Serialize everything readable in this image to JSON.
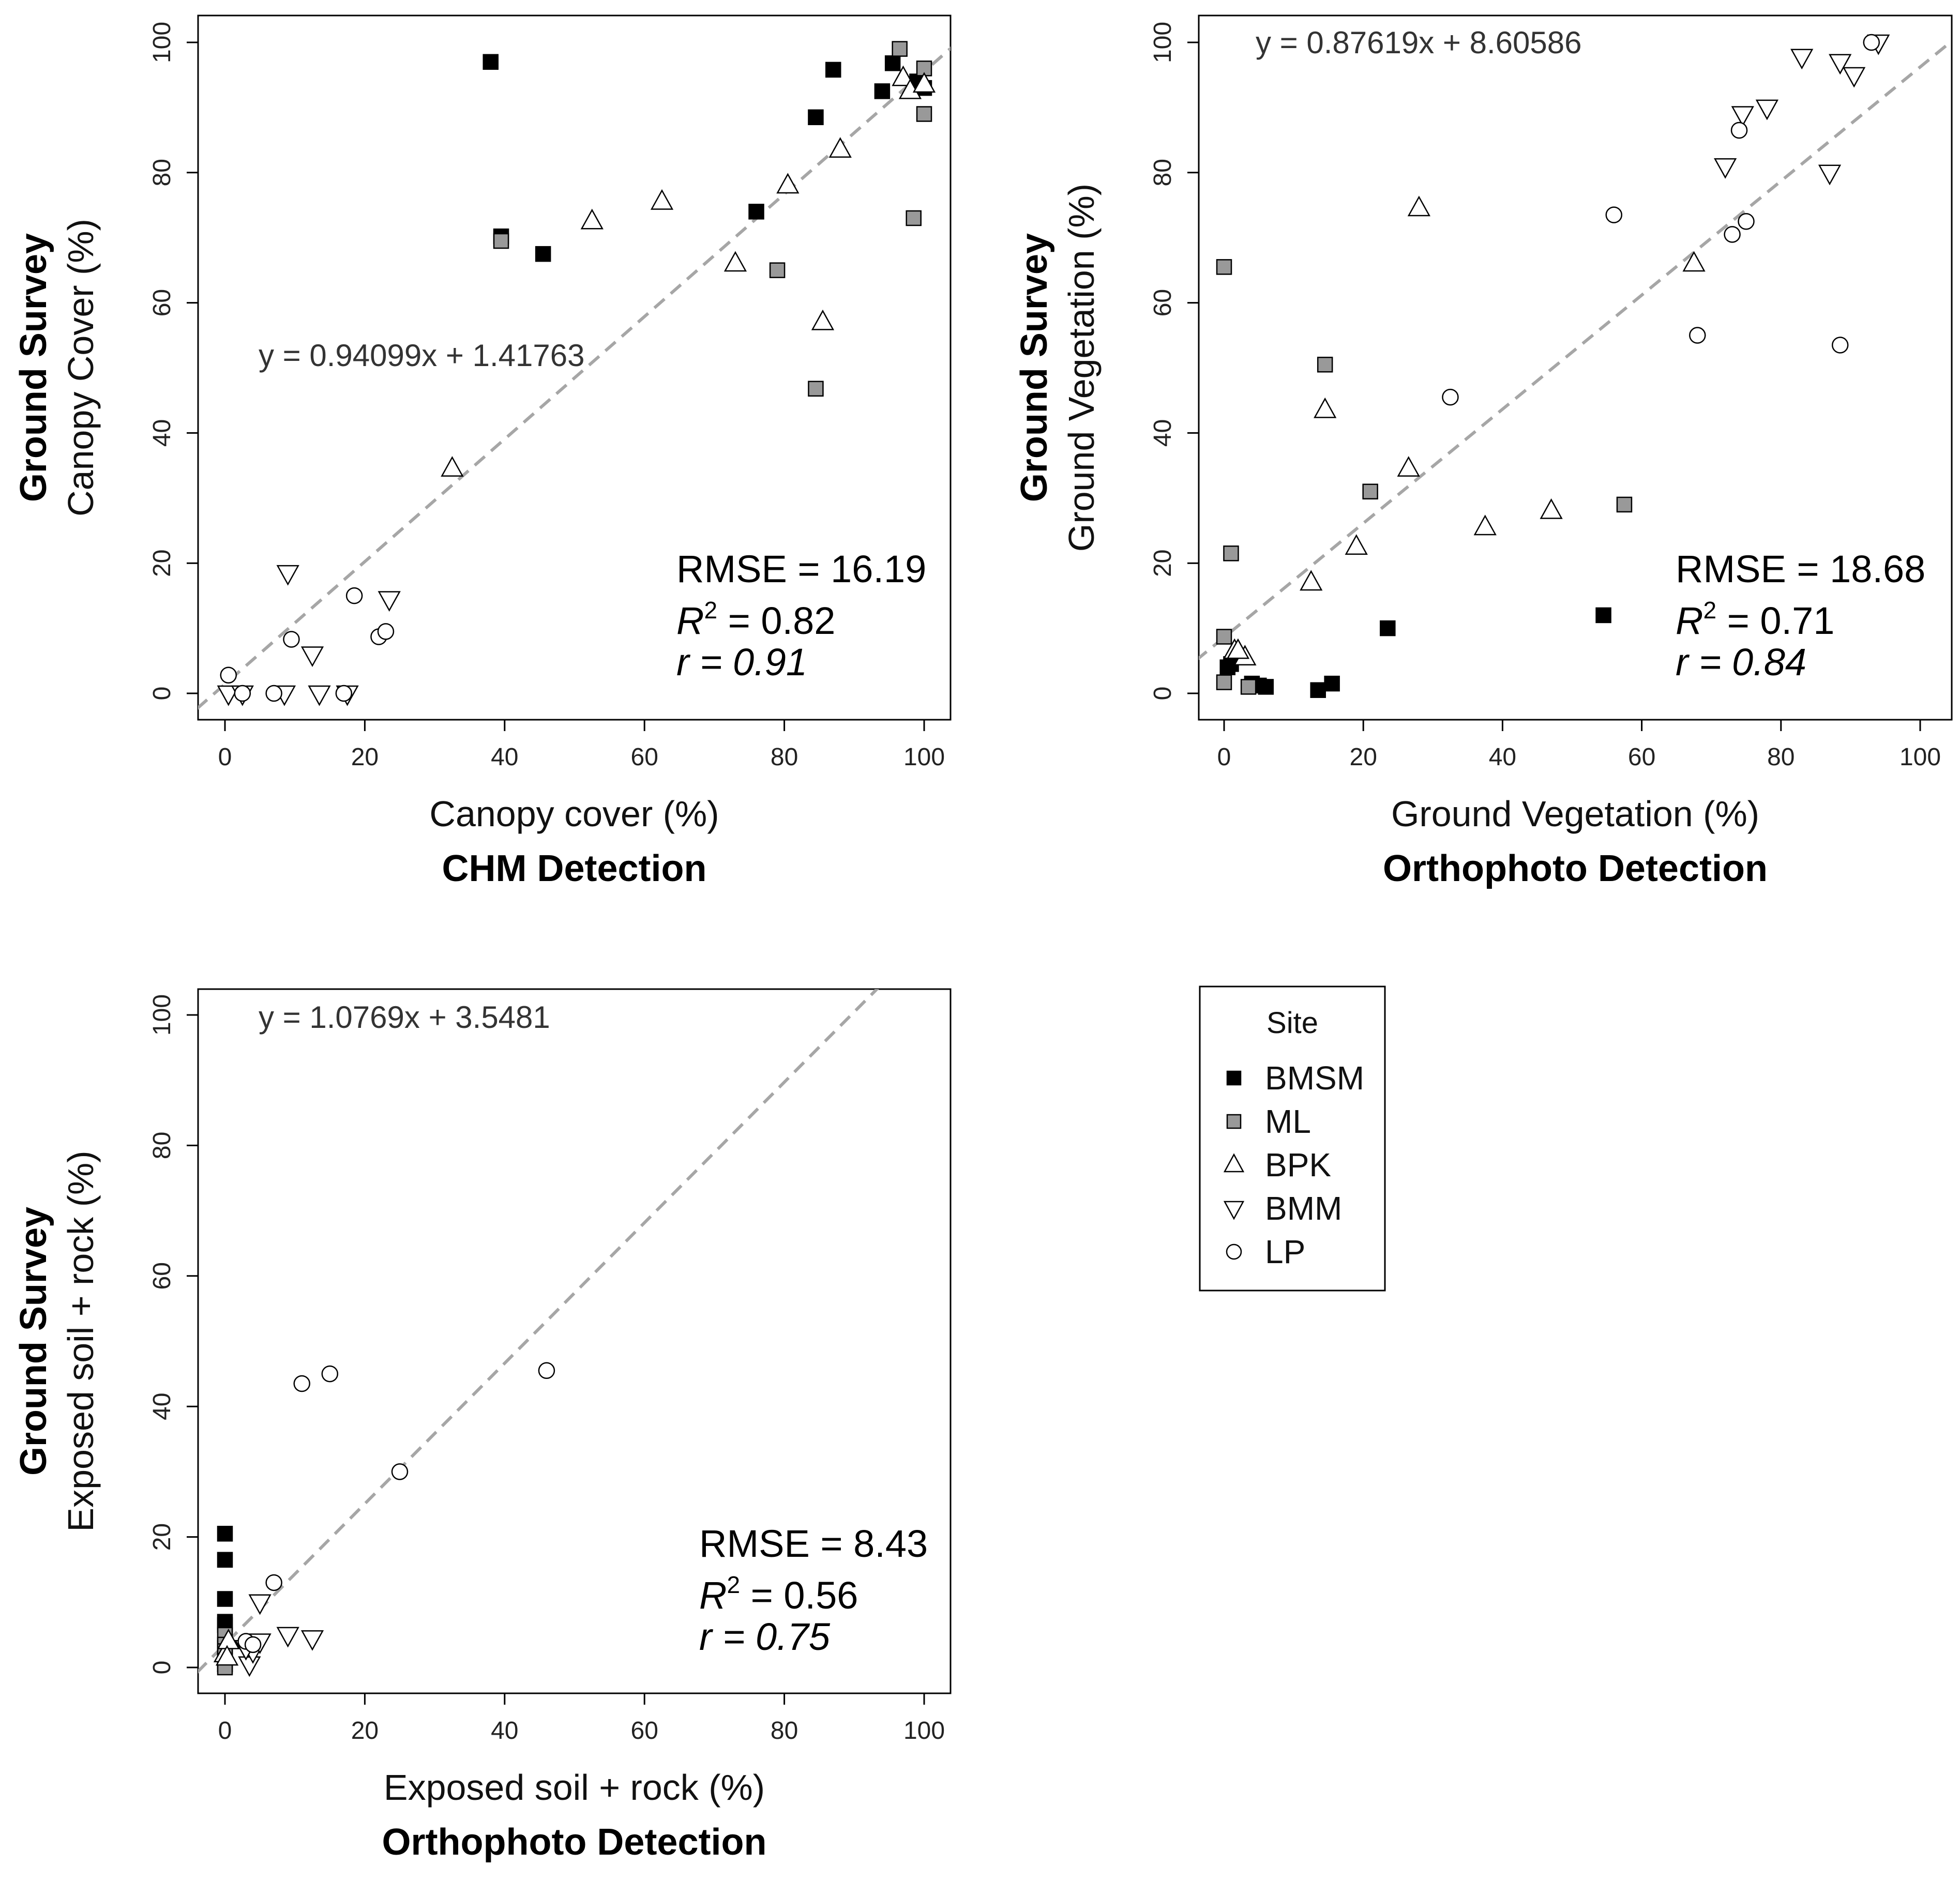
{
  "colors": {
    "BMSM": "#000000",
    "ML": "#999999",
    "BPK": "#ffffff",
    "BMM": "#ffffff",
    "LP": "#ffffff",
    "fit_line": "#a6a6a6",
    "marker_stroke": "#000000"
  },
  "legend": {
    "title": "Site",
    "items": [
      {
        "label": "BMSM",
        "shape": "square-icon",
        "fill": "#000000"
      },
      {
        "label": "ML",
        "shape": "square-icon",
        "fill": "#999999"
      },
      {
        "label": "BPK",
        "shape": "triangle-up-icon",
        "fill": "#ffffff"
      },
      {
        "label": "BMM",
        "shape": "triangle-down-icon",
        "fill": "#ffffff"
      },
      {
        "label": "LP",
        "shape": "circle-icon",
        "fill": "#ffffff"
      }
    ]
  },
  "chart_data": [
    {
      "type": "scatter",
      "xlabel": "Canopy cover (%)",
      "xlabel_bold": "CHM Detection",
      "ylabel": "Canopy Cover (%)",
      "ylabel_bold": "Ground Survey",
      "xlim": [
        -4,
        104
      ],
      "ylim": [
        -3.5,
        104
      ],
      "xticks": [
        0,
        20,
        40,
        60,
        80,
        100
      ],
      "yticks": [
        0,
        20,
        40,
        60,
        80,
        100
      ],
      "grid": false,
      "equation": "y = 0.94099x + 1.41763",
      "fit": {
        "slope": 0.94099,
        "intercept": 1.41763
      },
      "stats": {
        "rmse": "RMSE = 16.19",
        "r2_prefix": "R",
        "r2_sup": "2",
        "r2_value": " = 0.82",
        "r": "r = 0.91"
      },
      "series": [
        {
          "name": "BMSM",
          "points": [
            [
              38,
              97
            ],
            [
              39.5,
              70.2
            ],
            [
              45.5,
              67.5
            ],
            [
              76,
              74
            ],
            [
              84.5,
              88.5
            ],
            [
              87,
              95.8
            ],
            [
              94,
              92.5
            ],
            [
              95.5,
              96.8
            ],
            [
              99,
              94
            ],
            [
              100,
              93
            ]
          ]
        },
        {
          "name": "ML",
          "points": [
            [
              39.5,
              69.5
            ],
            [
              79,
              65
            ],
            [
              84.5,
              46.8
            ],
            [
              96.5,
              99
            ],
            [
              98.5,
              73
            ],
            [
              100,
              96
            ],
            [
              100,
              89
            ]
          ]
        },
        {
          "name": "BPK",
          "points": [
            [
              32.5,
              34.5
            ],
            [
              52.5,
              72.5
            ],
            [
              62.5,
              75.5
            ],
            [
              73,
              66
            ],
            [
              80.5,
              78
            ],
            [
              85.5,
              57
            ],
            [
              88,
              83.5
            ],
            [
              97,
              94.5
            ],
            [
              98,
              92.5
            ],
            [
              100,
              93.5
            ]
          ]
        },
        {
          "name": "BMM",
          "points": [
            [
              0.5,
              0
            ],
            [
              2.5,
              0
            ],
            [
              8.5,
              0
            ],
            [
              9,
              18.5
            ],
            [
              12.5,
              6
            ],
            [
              13.5,
              0
            ],
            [
              17.5,
              0
            ],
            [
              23.5,
              14.5
            ]
          ]
        },
        {
          "name": "LP",
          "points": [
            [
              0.5,
              2.8
            ],
            [
              2.5,
              0
            ],
            [
              7,
              0
            ],
            [
              9.5,
              8.3
            ],
            [
              17,
              0
            ],
            [
              18.5,
              15
            ],
            [
              22,
              8.7
            ],
            [
              23,
              9.5
            ]
          ]
        }
      ]
    },
    {
      "type": "scatter",
      "xlabel": "Ground Vegetation (%)",
      "xlabel_bold": "Orthophoto Detection",
      "ylabel": "Ground Vegetation (%)",
      "ylabel_bold": "Ground Survey",
      "xlim": [
        -4,
        104
      ],
      "ylim": [
        -3.5,
        104
      ],
      "xticks": [
        0,
        20,
        40,
        60,
        80,
        100
      ],
      "yticks": [
        0,
        20,
        40,
        60,
        80,
        100
      ],
      "grid": false,
      "equation": "y = 0.87619x + 8.60586",
      "fit": {
        "slope": 0.87619,
        "intercept": 8.60586
      },
      "stats": {
        "rmse": "RMSE = 18.68",
        "r2_prefix": "R",
        "r2_sup": "2",
        "r2_value": " = 0.71",
        "r": "r = 0.84"
      },
      "series": [
        {
          "name": "BMSM",
          "points": [
            [
              0.5,
              4
            ],
            [
              1,
              4.5
            ],
            [
              4,
              1.5
            ],
            [
              5,
              1.2
            ],
            [
              6,
              1
            ],
            [
              13.5,
              0.5
            ],
            [
              15.5,
              1.5
            ],
            [
              23.5,
              10
            ],
            [
              54.5,
              12
            ]
          ]
        },
        {
          "name": "ML",
          "points": [
            [
              0,
              65.5
            ],
            [
              0,
              8.7
            ],
            [
              0,
              1.7
            ],
            [
              1,
              21.5
            ],
            [
              3.5,
              1
            ],
            [
              14.5,
              50.5
            ],
            [
              21,
              31
            ],
            [
              57.5,
              29
            ]
          ]
        },
        {
          "name": "BPK",
          "points": [
            [
              1.5,
              6.5
            ],
            [
              3,
              5.5
            ],
            [
              2,
              6.5
            ],
            [
              12.5,
              17
            ],
            [
              14.5,
              43.5
            ],
            [
              19,
              22.5
            ],
            [
              26.5,
              34.5
            ],
            [
              28,
              74.5
            ],
            [
              37.5,
              25.5
            ],
            [
              47,
              28
            ],
            [
              67.5,
              66
            ]
          ]
        },
        {
          "name": "BMM",
          "points": [
            [
              72,
              81
            ],
            [
              74.5,
              89
            ],
            [
              78,
              90
            ],
            [
              83,
              97.8
            ],
            [
              87,
              80
            ],
            [
              88.5,
              97
            ],
            [
              90.5,
              95
            ],
            [
              94,
              100
            ]
          ]
        },
        {
          "name": "LP",
          "points": [
            [
              32.5,
              45.5
            ],
            [
              56,
              73.5
            ],
            [
              68,
              55
            ],
            [
              73,
              70.5
            ],
            [
              74,
              86.5
            ],
            [
              75,
              72.5
            ],
            [
              88.5,
              53.5
            ],
            [
              93,
              100
            ]
          ]
        }
      ]
    },
    {
      "type": "scatter",
      "xlabel": "Exposed soil + rock (%)",
      "xlabel_bold": "Orthophoto Detection",
      "ylabel": "Exposed soil + rock (%)",
      "ylabel_bold": "Ground Survey",
      "xlim": [
        -4,
        104
      ],
      "ylim": [
        -3.5,
        104
      ],
      "xticks": [
        0,
        20,
        40,
        60,
        80,
        100
      ],
      "yticks": [
        0,
        20,
        40,
        60,
        80,
        100
      ],
      "grid": false,
      "equation": "y = 1.0769x + 3.5481",
      "fit": {
        "slope": 1.0769,
        "intercept": 3.5481
      },
      "stats": {
        "rmse": "RMSE = 8.43",
        "r2_prefix": "R",
        "r2_sup": "2",
        "r2_value": " = 0.56",
        "r": "r = 0.75"
      },
      "series": [
        {
          "name": "BMSM",
          "points": [
            [
              0,
              20.5
            ],
            [
              0,
              16.5
            ],
            [
              0,
              10.5
            ],
            [
              0,
              7
            ],
            [
              0,
              6.5
            ],
            [
              0,
              3
            ],
            [
              0,
              1.5
            ],
            [
              0,
              0.5
            ]
          ]
        },
        {
          "name": "ML",
          "points": [
            [
              0,
              5
            ],
            [
              0,
              3.5
            ],
            [
              0,
              2.5
            ],
            [
              0,
              1
            ],
            [
              0,
              0.5
            ],
            [
              0,
              0
            ]
          ]
        },
        {
          "name": "BPK",
          "points": [
            [
              0,
              2
            ],
            [
              0.5,
              4
            ],
            [
              0.3,
              1.5
            ]
          ]
        },
        {
          "name": "BMM",
          "points": [
            [
              3.5,
              0.5
            ],
            [
              4,
              2.5
            ],
            [
              5,
              4
            ],
            [
              5,
              10
            ],
            [
              9,
              5
            ],
            [
              12.5,
              4.5
            ],
            [
              3,
              3
            ]
          ]
        },
        {
          "name": "LP",
          "points": [
            [
              3,
              4
            ],
            [
              4,
              3.5
            ],
            [
              7,
              13
            ],
            [
              11,
              43.5
            ],
            [
              15,
              45
            ],
            [
              25,
              30
            ],
            [
              46,
              45.5
            ]
          ]
        }
      ]
    }
  ]
}
